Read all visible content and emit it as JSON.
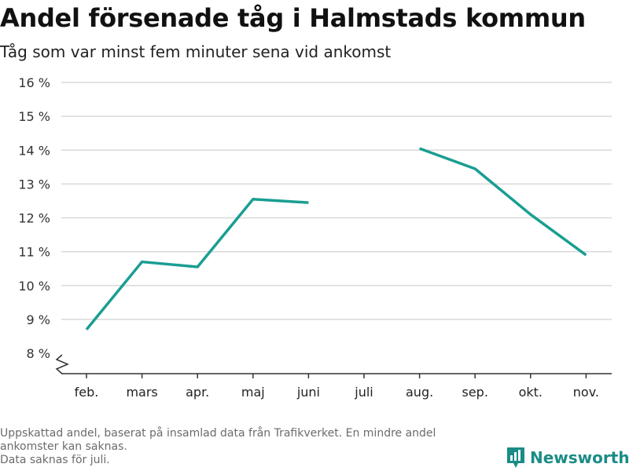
{
  "title": "Andel försenade tåg i Halmstads kommun",
  "subtitle": "Tåg som var minst fem minuter sena vid ankomst",
  "footer": {
    "line1": "Uppskattad andel, baserat på insamlad data från Trafikverket. En mindre andel",
    "line2": "ankomster kan saknas.",
    "line3": "Data saknas för juli."
  },
  "brand": {
    "name": "Newsworthy",
    "icon": "bar-chart-logo-icon",
    "color": "#1a8c86"
  },
  "chart_data": {
    "type": "line",
    "categories": [
      "feb.",
      "mars",
      "apr.",
      "maj",
      "juni",
      "juli",
      "aug.",
      "sep.",
      "okt.",
      "nov."
    ],
    "series": [
      {
        "values": [
          8.7,
          10.7,
          10.55,
          12.55,
          12.45,
          null,
          14.05,
          13.45,
          12.1,
          10.9
        ]
      }
    ],
    "ylim": [
      8,
      16
    ],
    "yticks": [
      8,
      9,
      10,
      11,
      12,
      13,
      14,
      15,
      16
    ],
    "ytick_suffix": " %",
    "grid": true,
    "line_color": "#1a9e93",
    "axis_break": true
  }
}
